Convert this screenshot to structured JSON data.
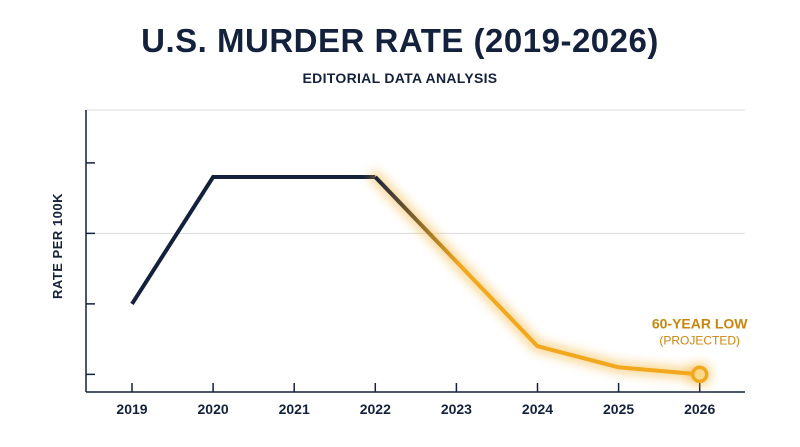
{
  "chart_data": {
    "type": "line",
    "title": "U.S. MURDER RATE (2019-2026)",
    "subtitle": "EDITORIAL DATA ANALYSIS",
    "xlabel": "",
    "ylabel": "RATE PER 100K",
    "categories": [
      "2019",
      "2020",
      "2021",
      "2022",
      "2023",
      "2024",
      "2025",
      "2026"
    ],
    "series": [
      {
        "values": [
          5.0,
          6.8,
          6.8,
          6.8,
          5.6,
          4.4,
          4.1,
          4.0
        ]
      }
    ],
    "ylim": [
      3.75,
      7.75
    ],
    "yticks": [
      4.0,
      5.0,
      6.0,
      7.0
    ],
    "grid": true,
    "colors": {
      "historical": "#14213d",
      "trend": "#f2a81d",
      "annotation": "#c8860f",
      "grid": "#dddddd"
    },
    "annotation": {
      "category": "2026",
      "label": "60-YEAR LOW",
      "sublabel": "(PROJECTED)"
    }
  }
}
